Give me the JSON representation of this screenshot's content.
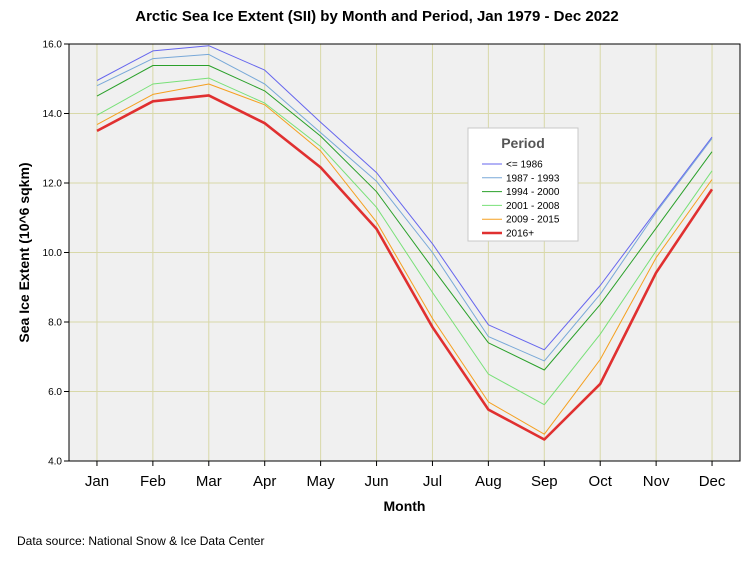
{
  "chart_data": {
    "type": "line",
    "title": "Arctic Sea Ice Extent (SII) by Month and Period, Jan 1979 - Dec 2022",
    "xlabel": "Month",
    "ylabel": "Sea Ice Extent (10^6 sqkm)",
    "categories": [
      "Jan",
      "Feb",
      "Mar",
      "Apr",
      "May",
      "Jun",
      "Jul",
      "Aug",
      "Sep",
      "Oct",
      "Nov",
      "Dec"
    ],
    "ylim": [
      4.0,
      16.0
    ],
    "yticks": [
      4.0,
      6.0,
      8.0,
      10.0,
      12.0,
      14.0,
      16.0
    ],
    "ytick_labels": [
      "4.0",
      "6.0",
      "8.0",
      "10.0",
      "12.0",
      "14.0",
      "16.0"
    ],
    "grid": true,
    "legend_title": "Period",
    "legend_position": "right-middle",
    "series": [
      {
        "name": "<= 1986",
        "color": "#6666ee",
        "width": 1,
        "values": [
          14.95,
          15.8,
          15.95,
          15.25,
          13.75,
          12.3,
          10.25,
          7.92,
          7.2,
          9.05,
          11.2,
          13.32
        ]
      },
      {
        "name": "1987 - 1993",
        "color": "#78a8d8",
        "width": 1,
        "values": [
          14.8,
          15.58,
          15.7,
          14.85,
          13.45,
          12.05,
          10.0,
          7.58,
          6.88,
          8.8,
          11.15,
          13.28
        ]
      },
      {
        "name": "1994 - 2000",
        "color": "#2aa02a",
        "width": 1,
        "values": [
          14.5,
          15.38,
          15.38,
          14.65,
          13.35,
          11.75,
          9.55,
          7.4,
          6.62,
          8.5,
          10.7,
          12.9
        ]
      },
      {
        "name": "2001 - 2008",
        "color": "#78e078",
        "width": 1,
        "values": [
          13.95,
          14.85,
          15.02,
          14.3,
          13.05,
          11.3,
          8.85,
          6.5,
          5.62,
          7.65,
          10.05,
          12.35
        ]
      },
      {
        "name": "2009 - 2015",
        "color": "#f5a020",
        "width": 1,
        "values": [
          13.68,
          14.55,
          14.85,
          14.25,
          12.92,
          10.88,
          8.1,
          5.7,
          4.77,
          6.92,
          9.85,
          12.1
        ]
      },
      {
        "name": "2016+",
        "color": "#e03030",
        "width": 2.6,
        "values": [
          13.5,
          14.35,
          14.52,
          13.72,
          12.45,
          10.68,
          7.85,
          5.48,
          4.62,
          6.22,
          9.42,
          11.82
        ]
      }
    ]
  },
  "source": "Data source: National Snow & Ice Data Center"
}
